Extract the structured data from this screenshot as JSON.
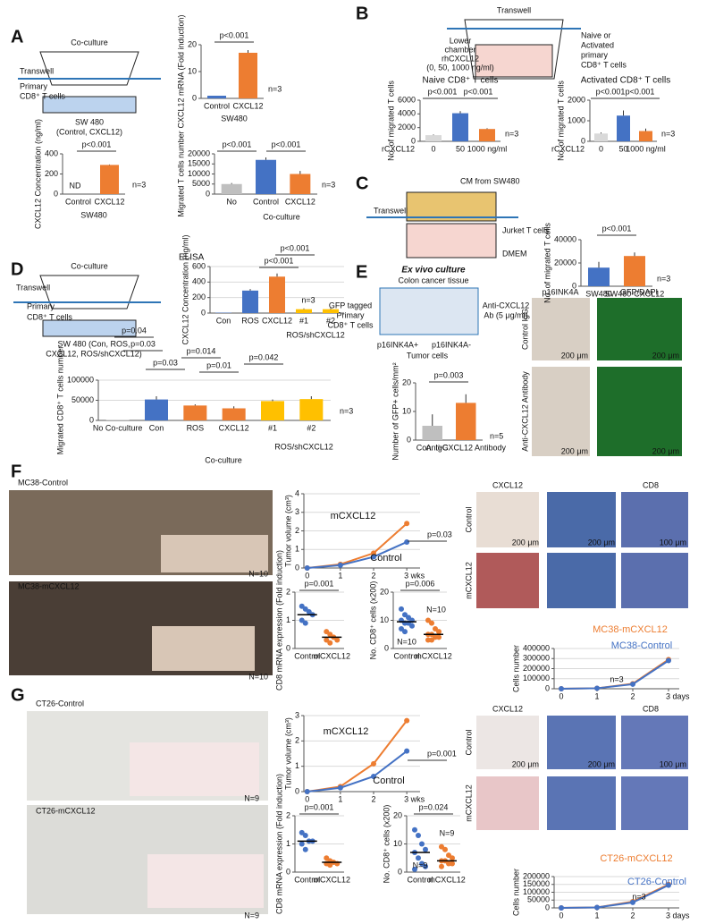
{
  "panels": [
    "A",
    "B",
    "C",
    "D",
    "E",
    "F",
    "G"
  ],
  "figure_labels": [
    "Co-culture",
    "Transwell",
    "Primary",
    "CD8⁺ T cells",
    "SW 480",
    "(Control, CXCL12)",
    "Transwell",
    "Lower",
    "chamber",
    "rhCXCL12",
    "(0, 50, 1000 ng/ml)",
    "Naive or",
    "Activated",
    "primary",
    "CD8⁺ T cells",
    "Transwell",
    "CM from SW480",
    "Jurket T cells",
    "DMEM",
    "Co-culture",
    "Transwell",
    "Primary",
    "CD8⁺ T cells",
    "SW 480 (Con, ROS,",
    "CXCL12, ROS/shCXCL12)",
    "Ex vivo culture",
    "Colon cancer tissue",
    "GFP tagged",
    "Primary",
    "CD8⁺ T cells",
    "Anti-CXCL12",
    "Ab (5 μg/ml)",
    "p16INK4A+",
    "p16INK4A-",
    "Tumor cells",
    "p16INK4A",
    "GFP/DAPI",
    "Control IgG",
    "Anti-CXCL12 Antibody",
    "200 μm",
    "200 μm",
    "200 μm",
    "200 μm",
    "MC38-Control",
    "N=10",
    "MC38-mCXCL12",
    "N=10",
    "CXCL12",
    "CD8",
    "Control",
    "mCXCL12",
    "200 μm",
    "200 μm",
    "100 μm",
    "CT26-Control",
    "N=9",
    "CT26-mCXCL12",
    "N=9",
    "CXCL12",
    "CD8",
    "Control",
    "mCXCL12",
    "200 μm",
    "200 μm",
    "100 μm"
  ],
  "chart_data": [
    {
      "type": "bar",
      "ylabel": "CXCL12 mRNA (Fold induction)",
      "categories": [
        "Control",
        "CXCL12"
      ],
      "values": [
        1,
        17
      ],
      "errors": [
        0,
        1
      ],
      "colors": [
        "#4472c4",
        "#ed7d31"
      ],
      "ylim": [
        0,
        20
      ],
      "yticks": [
        0,
        10,
        20
      ],
      "annotations": [
        "p<0.001",
        "n=3",
        "SW480"
      ]
    },
    {
      "type": "bar",
      "ylabel": "CXCL12 Concentration (ng/ml)",
      "categories": [
        "Control",
        "CXCL12"
      ],
      "values": [
        0,
        290
      ],
      "errors": [
        0,
        5
      ],
      "colors": [
        "#4472c4",
        "#ed7d31"
      ],
      "ylim": [
        0,
        400
      ],
      "yticks": [
        0,
        200,
        400
      ],
      "annotations": [
        "p<0.001",
        "ND",
        "n=3",
        "SW480"
      ]
    },
    {
      "type": "bar",
      "ylabel": "Migrated T cells number",
      "categories": [
        "No",
        "Control",
        "CXCL12"
      ],
      "values": [
        5000,
        17000,
        10000
      ],
      "errors": [
        500,
        1200,
        1500
      ],
      "colors": [
        "#bfbfbf",
        "#4472c4",
        "#ed7d31"
      ],
      "ylim": [
        0,
        20000
      ],
      "yticks": [
        0,
        5000,
        10000,
        15000,
        20000
      ],
      "annotations": [
        "p<0.001",
        "p<0.001",
        "n=3",
        "Co-culture"
      ]
    },
    {
      "type": "bar",
      "title": "Naive CD8⁺ T cells",
      "ylabel": "No. of migrated T cells",
      "xlabel": "rCXCL12",
      "categories": [
        "0",
        "50",
        "1000 ng/ml"
      ],
      "values": [
        900,
        4100,
        1800
      ],
      "errors": [
        100,
        300,
        100
      ],
      "colors": [
        "#d9d9d9",
        "#4472c4",
        "#ed7d31"
      ],
      "ylim": [
        0,
        6000
      ],
      "yticks": [
        0,
        2000,
        4000,
        6000
      ],
      "annotations": [
        "p<0.001",
        "p<0.001",
        "n=3"
      ]
    },
    {
      "type": "bar",
      "title": "Activated CD8⁺ T cells",
      "ylabel": "No. of migrated T cells",
      "xlabel": "rCXCL12",
      "categories": [
        "0",
        "50",
        "1000 ng/ml"
      ],
      "values": [
        380,
        1250,
        500
      ],
      "errors": [
        50,
        250,
        120
      ],
      "colors": [
        "#d9d9d9",
        "#4472c4",
        "#ed7d31"
      ],
      "ylim": [
        0,
        2000
      ],
      "yticks": [
        0,
        1000,
        2000
      ],
      "annotations": [
        "p<0.001",
        "p<0.001",
        "n=3"
      ]
    },
    {
      "type": "bar",
      "ylabel": "No. of migrated T cells",
      "categories": [
        "SW480",
        "SW480-CXCL12"
      ],
      "values": [
        16000,
        26000
      ],
      "errors": [
        5000,
        3000
      ],
      "colors": [
        "#4472c4",
        "#ed7d31"
      ],
      "ylim": [
        0,
        40000
      ],
      "yticks": [
        0,
        20000,
        40000
      ],
      "annotations": [
        "p<0.001",
        "n=3"
      ]
    },
    {
      "type": "bar",
      "title": "ELISA",
      "ylabel": "CXCL12 Concentration (ng/ml)",
      "categories": [
        "Con",
        "ROS",
        "CXCL12",
        "#1",
        "#2"
      ],
      "values": [
        5,
        290,
        470,
        50,
        50
      ],
      "errors": [
        0,
        20,
        40,
        10,
        15
      ],
      "colors": [
        "#4472c4",
        "#4472c4",
        "#ed7d31",
        "#ffc000",
        "#ffc000"
      ],
      "ylim": [
        0,
        600
      ],
      "yticks": [
        0,
        200,
        400,
        600
      ],
      "grid": true,
      "annotations": [
        "p<0.001",
        "p<0.001",
        "n=3",
        "ROS/shCXCL12"
      ]
    },
    {
      "type": "bar",
      "ylabel": "Migrated CD8⁺ T cells number",
      "categories": [
        "No Co-culture",
        "Con",
        "ROS",
        "CXCL12",
        "#1",
        "#2"
      ],
      "values": [
        1000,
        52000,
        37000,
        30000,
        48000,
        53000
      ],
      "errors": [
        0,
        8000,
        3000,
        5000,
        4000,
        7000
      ],
      "colors": [
        "#bfbfbf",
        "#4472c4",
        "#ed7d31",
        "#ed7d31",
        "#ffc000",
        "#ffc000"
      ],
      "ylim": [
        0,
        100000
      ],
      "yticks": [
        0,
        50000,
        100000
      ],
      "grid": true,
      "annotations": [
        "p=0.04",
        "p=0.03",
        "p=0.014",
        "p=0.03",
        "p=0.01",
        "p=0.042",
        "n=3",
        "ROS/shCXCL12",
        "Co-culture"
      ]
    },
    {
      "type": "bar",
      "ylabel": "Number of GFP+ cells/mm²",
      "categories": [
        "Con. IgG",
        "Anti-CXCL12 Antibody"
      ],
      "values": [
        5,
        13
      ],
      "errors": [
        4,
        3
      ],
      "colors": [
        "#bfbfbf",
        "#ed7d31"
      ],
      "ylim": [
        0,
        20
      ],
      "yticks": [
        0,
        10,
        20
      ],
      "annotations": [
        "p=0.003",
        "n=5"
      ]
    },
    {
      "type": "line",
      "ylabel": "Tumor volume (cm³)",
      "x": [
        0,
        1,
        2,
        3
      ],
      "xlim": [
        -0.1,
        3.4
      ],
      "xticks": [
        0,
        1,
        2,
        {
          "value": 3,
          "label": "3 wks"
        }
      ],
      "ylim": [
        0,
        4
      ],
      "yticks": [
        0,
        1,
        2,
        3,
        4
      ],
      "grid": true,
      "series": [
        {
          "name": "mCXCL12",
          "color": "#ed7d31",
          "values": [
            0,
            0.2,
            0.8,
            2.4
          ]
        },
        {
          "name": "Control",
          "color": "#4472c4",
          "values": [
            0,
            0.15,
            0.6,
            1.4
          ]
        }
      ],
      "annotations": [
        "p=0.03"
      ]
    },
    {
      "type": "dot",
      "ylabel": "CD8 mRNA expression (Fold induction)",
      "categories": [
        "Control",
        "mCXCL12"
      ],
      "groups": [
        {
          "color": "#4472c4",
          "values": [
            1.5,
            1.4,
            1.3,
            1.2,
            1.0,
            0.9
          ]
        },
        {
          "color": "#ed7d31",
          "values": [
            0.6,
            0.5,
            0.4,
            0.3,
            0.3,
            0.2
          ]
        }
      ],
      "means": [
        1.2,
        0.4
      ],
      "ylim": [
        0,
        2
      ],
      "yticks": [
        0,
        1,
        2
      ],
      "grid": true,
      "annotations": [
        "p=0.001"
      ]
    },
    {
      "type": "dot",
      "ylabel": "No. CD8⁺ cells (x200)",
      "categories": [
        "Control",
        "mCXCL12"
      ],
      "groups": [
        {
          "color": "#4472c4",
          "values": [
            14,
            12,
            11,
            10,
            10,
            9,
            9,
            8,
            7,
            6
          ]
        },
        {
          "color": "#ed7d31",
          "values": [
            10,
            9,
            7,
            6,
            5,
            5,
            4,
            4,
            3,
            3
          ]
        }
      ],
      "means": [
        9.5,
        5
      ],
      "ylim": [
        0,
        20
      ],
      "yticks": [
        0,
        10,
        20
      ],
      "grid": true,
      "annotations": [
        "p=0.006",
        "N=10",
        "N=10"
      ]
    },
    {
      "type": "line",
      "ylabel": "Cells number",
      "x": [
        0,
        1,
        2,
        3
      ],
      "xlim": [
        -0.2,
        3.3
      ],
      "xticks": [
        0,
        1,
        2,
        {
          "value": 3,
          "label": "3 days"
        }
      ],
      "ylim": [
        0,
        400000
      ],
      "yticks": [
        0,
        100000,
        200000,
        300000,
        400000
      ],
      "grid": true,
      "series": [
        {
          "name": "MC38-mCXCL12",
          "color": "#ed7d31",
          "values": [
            0,
            5000,
            50000,
            290000
          ]
        },
        {
          "name": "MC38-Control",
          "color": "#4472c4",
          "values": [
            0,
            5000,
            45000,
            280000
          ]
        }
      ],
      "annotations": [
        "n=3"
      ]
    },
    {
      "type": "line",
      "ylabel": "Tumor volume (cm³)",
      "x": [
        0,
        1,
        2,
        3
      ],
      "xlim": [
        -0.1,
        3.4
      ],
      "xticks": [
        0,
        1,
        2,
        {
          "value": 3,
          "label": "3 wks"
        }
      ],
      "ylim": [
        0,
        3
      ],
      "yticks": [
        0,
        1,
        2,
        3
      ],
      "grid": true,
      "series": [
        {
          "name": "mCXCL12",
          "color": "#ed7d31",
          "values": [
            0,
            0.2,
            1.1,
            2.8
          ]
        },
        {
          "name": "Control",
          "color": "#4472c4",
          "values": [
            0,
            0.15,
            0.6,
            1.6
          ]
        }
      ],
      "annotations": [
        "p=0.001"
      ]
    },
    {
      "type": "dot",
      "ylabel": "CD8 mRNA expression (Fold induction)",
      "categories": [
        "Control",
        "mCXCL12"
      ],
      "groups": [
        {
          "color": "#4472c4",
          "values": [
            1.4,
            1.3,
            1.1,
            1.1,
            1.0,
            0.8
          ]
        },
        {
          "color": "#ed7d31",
          "values": [
            0.5,
            0.4,
            0.35,
            0.3,
            0.3,
            0.25
          ]
        }
      ],
      "means": [
        1.1,
        0.35
      ],
      "ylim": [
        0,
        2
      ],
      "yticks": [
        0,
        1,
        2
      ],
      "grid": true,
      "annotations": [
        "p=0.001"
      ]
    },
    {
      "type": "dot",
      "ylabel": "No. CD8⁺ cells (x200)",
      "categories": [
        "Control",
        "mCXCL12"
      ],
      "groups": [
        {
          "color": "#4472c4",
          "values": [
            15,
            13,
            10,
            8,
            7,
            5,
            3,
            2,
            1
          ]
        },
        {
          "color": "#ed7d31",
          "values": [
            9,
            8,
            6,
            5,
            4,
            4,
            3,
            3,
            2
          ]
        }
      ],
      "means": [
        7,
        4
      ],
      "ylim": [
        0,
        20
      ],
      "yticks": [
        0,
        10,
        20
      ],
      "grid": true,
      "annotations": [
        "p=0.024",
        "N=9",
        "N=9"
      ]
    },
    {
      "type": "line",
      "ylabel": "Cells number",
      "x": [
        0,
        1,
        2,
        3
      ],
      "xlim": [
        -0.2,
        3.3
      ],
      "xticks": [
        0,
        1,
        2,
        {
          "value": 3,
          "label": "3 days"
        }
      ],
      "ylim": [
        0,
        200000
      ],
      "yticks": [
        0,
        50000,
        100000,
        150000,
        200000
      ],
      "grid": true,
      "series": [
        {
          "name": "CT26-mCXCL12",
          "color": "#ed7d31",
          "values": [
            0,
            3000,
            40000,
            150000
          ]
        },
        {
          "name": "CT26-Control",
          "color": "#4472c4",
          "values": [
            0,
            3000,
            35000,
            145000
          ]
        }
      ],
      "annotations": [
        "n=3"
      ]
    }
  ]
}
